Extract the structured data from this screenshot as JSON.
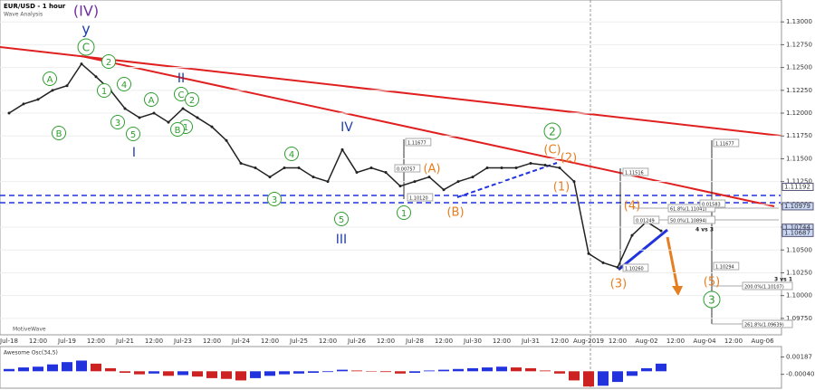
{
  "chart_data": [
    {
      "type": "line",
      "title": "EUR/USD - 1 hour",
      "subtitle": "Wave Analysis",
      "watermark": "MotiveWave",
      "color": "#222222",
      "categories": [
        "Jul-18",
        null,
        "12:00",
        null,
        "Jul-19",
        null,
        "12:00",
        null,
        "Jul-21",
        null,
        "12:00",
        null,
        "Jul-23",
        null,
        "12:00",
        null,
        "Jul-24",
        null,
        "12:00",
        null,
        "Jul-25",
        null,
        "12:00",
        null,
        "Jul-26",
        null,
        "12:00",
        null,
        "Jul-28",
        null,
        "12:00",
        null,
        "Jul-30",
        null,
        "12:00",
        null,
        "Jul-31",
        null,
        "12:00",
        null,
        "Aug-2019",
        null,
        "12:00",
        null,
        "Aug-02",
        null,
        "12:00",
        null,
        "Aug-04",
        null,
        "12:00",
        null,
        "Aug-06"
      ],
      "values": [
        1.12,
        1.121,
        1.1215,
        1.1225,
        1.123,
        1.1254,
        1.124,
        1.1225,
        1.1205,
        1.1195,
        1.12,
        1.119,
        1.1205,
        1.1195,
        1.1185,
        1.117,
        1.1145,
        1.114,
        1.113,
        1.114,
        1.114,
        1.113,
        1.1125,
        1.116,
        1.1135,
        1.114,
        1.1135,
        1.112,
        1.1125,
        1.113,
        1.1116,
        1.1125,
        1.113,
        1.114,
        1.114,
        1.114,
        1.1145,
        1.1143,
        1.114,
        1.1125,
        1.1046,
        1.1036,
        1.1031,
        1.1066,
        1.1081,
        1.1071,
        null,
        null,
        null,
        null,
        null,
        null,
        null
      ],
      "ylim": [
        1.0959,
        1.1324
      ],
      "yticks": [
        {
          "value": 1.0975,
          "label": "1.09750"
        },
        {
          "value": 1.1,
          "label": "1.10000"
        },
        {
          "value": 1.1025,
          "label": "1.10250"
        },
        {
          "value": 1.105,
          "label": "1.10500"
        },
        {
          "value": 1.1075,
          "label": "1.10750"
        },
        {
          "value": 1.11,
          "label": "1.11000"
        },
        {
          "value": 1.1125,
          "label": "1.11250"
        },
        {
          "value": 1.115,
          "label": "1.11500"
        },
        {
          "value": 1.1175,
          "label": "1.11750"
        },
        {
          "value": 1.12,
          "label": "1.12000"
        },
        {
          "value": 1.1225,
          "label": "1.12250"
        },
        {
          "value": 1.125,
          "label": "1.12500"
        },
        {
          "value": 1.1275,
          "label": "1.12750"
        },
        {
          "value": 1.13,
          "label": "1.13000"
        }
      ],
      "price_markers": [
        {
          "value": 1.11192,
          "label": "1.11192",
          "color": "#ffffff"
        },
        {
          "value": 1.10979,
          "label": "1.10979",
          "color": "#c9d7f5"
        },
        {
          "value": 1.10744,
          "label": "1.10744",
          "color": "#c9d7f5"
        },
        {
          "value": 1.10687,
          "label": "1.10687",
          "color": "#c9d7f5"
        }
      ],
      "annotations": [
        {
          "text": "(IV)",
          "color": "#7030a0"
        },
        {
          "text": "y",
          "color": "#1f3fa8"
        },
        {
          "text": "C",
          "color": "#2e9e2e"
        },
        {
          "text": "2",
          "color": "#2e9e2e"
        },
        {
          "text": "1",
          "color": "#2e9e2e"
        },
        {
          "text": "A",
          "color": "#2e9e2e"
        },
        {
          "text": "B",
          "color": "#2e9e2e"
        },
        {
          "text": "4",
          "color": "#2e9e2e"
        },
        {
          "text": "3",
          "color": "#2e9e2e"
        },
        {
          "text": "5",
          "color": "#2e9e2e"
        },
        {
          "text": "A",
          "color": "#2e9e2e"
        },
        {
          "text": "C",
          "color": "#2e9e2e"
        },
        {
          "text": "2",
          "color": "#2e9e2e"
        },
        {
          "text": "1",
          "color": "#2e9e2e"
        },
        {
          "text": "B",
          "color": "#2e9e2e"
        },
        {
          "text": "I",
          "color": "#1f3fa8"
        },
        {
          "text": "II",
          "color": "#1f3fa8"
        },
        {
          "text": "4",
          "color": "#2e9e2e"
        },
        {
          "text": "3",
          "color": "#2e9e2e"
        },
        {
          "text": "IV",
          "color": "#1f3fa8"
        },
        {
          "text": "5",
          "color": "#2e9e2e"
        },
        {
          "text": "III",
          "color": "#1f3fa8"
        },
        {
          "text": "1",
          "color": "#2e9e2e"
        },
        {
          "text": "(A)",
          "color": "#e67e22"
        },
        {
          "text": "(B)",
          "color": "#e67e22"
        },
        {
          "text": "2",
          "color": "#2e9e2e"
        },
        {
          "text": "(C)",
          "color": "#e67e22"
        },
        {
          "text": "(2)",
          "color": "#e67e22"
        },
        {
          "text": "(1)",
          "color": "#e67e22"
        },
        {
          "text": "(4)",
          "color": "#e67e22"
        },
        {
          "text": "(3)",
          "color": "#e67e22"
        },
        {
          "text": "(5)",
          "color": "#e67e22"
        },
        {
          "text": "3",
          "color": "#2e9e2e"
        },
        {
          "text": "4 vs 3",
          "color": "#222222"
        },
        {
          "text": "3 vs 1",
          "color": "#222222"
        },
        {
          "text": "61.8%(1.11041)",
          "color": "#222222"
        },
        {
          "text": "50.0%(1.10894)",
          "color": "#222222"
        },
        {
          "text": "200.0%(1.10107)",
          "color": "#222222"
        },
        {
          "text": "261.8%(1.09639)",
          "color": "#222222"
        },
        {
          "text": "0.01583",
          "color": "#222222"
        },
        {
          "text": "0.01249",
          "color": "#222222"
        },
        {
          "text": "0.00757",
          "color": "#222222"
        },
        {
          "text": "1.11677",
          "color": "#222222"
        },
        {
          "text": "1.11677",
          "color": "#222222"
        },
        {
          "text": "1.11516",
          "color": "#222222"
        },
        {
          "text": "1.10294",
          "color": "#222222"
        },
        {
          "text": "1.10120",
          "color": "#222222"
        },
        {
          "text": "1.10260",
          "color": "#222222"
        }
      ]
    },
    {
      "type": "bar",
      "title": "Awesome Osc(34,5)",
      "up_color": "#2233dd",
      "down_color": "#cc2222",
      "values": [
        0.0003,
        0.0005,
        0.0006,
        0.0009,
        0.0012,
        0.0014,
        0.001,
        0.0004,
        -0.0002,
        -0.0004,
        -0.0003,
        -0.0006,
        -0.0005,
        -0.0007,
        -0.0009,
        -0.001,
        -0.0012,
        -0.0009,
        -0.0006,
        -0.0004,
        -0.0003,
        -0.0002,
        -0.0001,
        0.0002,
        0.0001,
        0,
        -0.0001,
        -0.0003,
        -0.0002,
        0.0001,
        0.0002,
        0.0003,
        0.0004,
        0.0005,
        0.0006,
        0.0005,
        0.0004,
        0.0001,
        -0.0003,
        -0.0012,
        -0.002,
        -0.0019,
        -0.0014,
        -0.0006,
        0.0004,
        0.001,
        null,
        null,
        null,
        null,
        null,
        null,
        null
      ],
      "ylim": [
        -0.0021,
        0.003
      ],
      "yticks": [
        0.00187,
        {
          "value": -0.0004,
          "label": "-0.00040"
        }
      ]
    }
  ]
}
